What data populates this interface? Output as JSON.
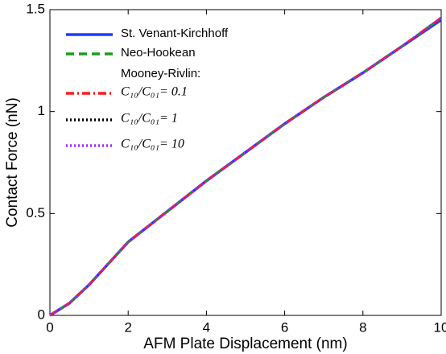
{
  "chart_data": {
    "type": "line",
    "x_label": "AFM Plate Displacement (nm)",
    "y_label": "Contact Force (nN)",
    "legend_group_label": "Mooney-Rivlin:",
    "x": [
      0,
      0.5,
      1,
      2,
      3,
      4,
      5,
      6,
      7,
      8,
      9,
      10
    ],
    "series": [
      {
        "name": "St. Venant-Kirchhoff",
        "color": "#1f3cff",
        "style": "solid",
        "values": [
          0,
          0.06,
          0.15,
          0.36,
          0.51,
          0.66,
          0.8,
          0.94,
          1.07,
          1.19,
          1.32,
          1.45
        ]
      },
      {
        "name": "Neo-Hookean",
        "color": "#1a9e1a",
        "style": "dashed",
        "values": [
          0,
          0.06,
          0.15,
          0.36,
          0.51,
          0.66,
          0.8,
          0.94,
          1.07,
          1.19,
          1.32,
          1.46
        ]
      },
      {
        "name": "C₁₀/C₀₁= 0.1",
        "color": "#ff1a1a",
        "style": "dashdot",
        "values": [
          0,
          0.06,
          0.15,
          0.36,
          0.51,
          0.66,
          0.8,
          0.94,
          1.07,
          1.19,
          1.32,
          1.46
        ]
      },
      {
        "name": "C₁₀/C₀₁= 1",
        "color": "#000000",
        "style": "dotted",
        "values": [
          0,
          0.06,
          0.15,
          0.36,
          0.51,
          0.66,
          0.8,
          0.94,
          1.07,
          1.19,
          1.32,
          1.46
        ]
      },
      {
        "name": "C₁₀/C₀₁= 10",
        "color": "#9b30ff",
        "style": "dotted",
        "values": [
          0,
          0.06,
          0.15,
          0.36,
          0.51,
          0.66,
          0.8,
          0.94,
          1.07,
          1.19,
          1.32,
          1.46
        ]
      }
    ],
    "xlim": [
      0,
      10
    ],
    "xticks": [
      0,
      2,
      4,
      6,
      8,
      10
    ],
    "ylim": [
      0,
      1.5
    ],
    "yticks": [
      0,
      0.5,
      1,
      1.5
    ],
    "grid": false,
    "legend": "upper left"
  }
}
